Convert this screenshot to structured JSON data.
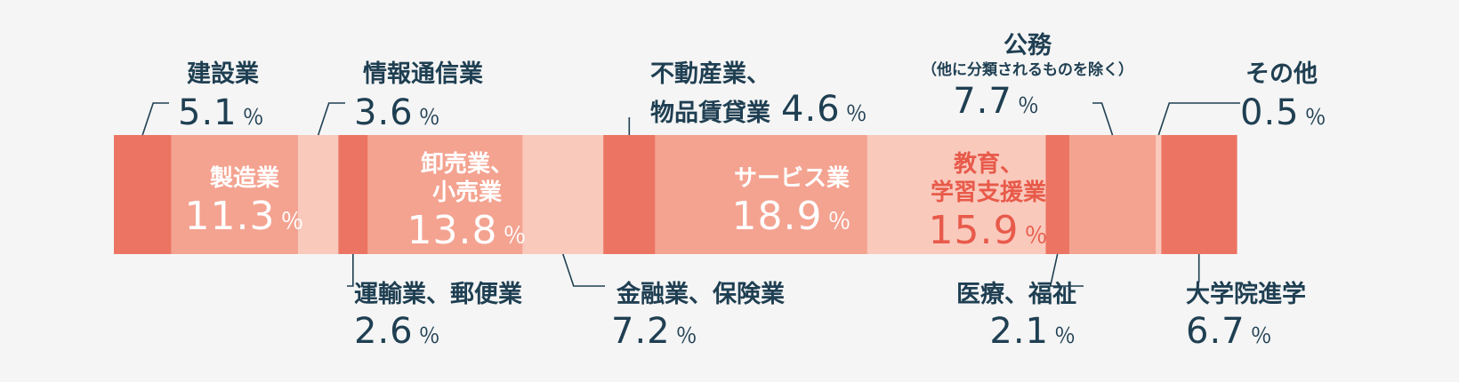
{
  "chart_data": {
    "type": "bar",
    "subtype": "100% stacked horizontal bar",
    "unit": "％",
    "categories": [
      "建設業",
      "製造業",
      "情報通信業",
      "運輸業、郵便業",
      "卸売業、小売業",
      "金融業、保険業",
      "不動産業、物品賃貸業",
      "サービス業",
      "教育、学習支援業",
      "医療、福祉",
      "公務（他に分類されるものを除く）",
      "その他",
      "大学院進学"
    ],
    "series": [
      {
        "values": [
          5.1,
          11.3,
          3.6,
          2.6,
          13.8,
          7.2,
          4.6,
          18.9,
          15.9,
          2.1,
          7.7,
          0.5,
          6.7
        ]
      }
    ],
    "segments": [
      {
        "name": "建設業",
        "value": "5.1",
        "color": "#ec7462"
      },
      {
        "name": "製造業",
        "value": "11.3",
        "color": "#f4a391"
      },
      {
        "name": "情報通信業",
        "value": "3.6",
        "color": "#f9c9bc"
      },
      {
        "name": "運輸業、郵便業",
        "value": "2.6",
        "color": "#ec7462"
      },
      {
        "name_line1": "卸売業、",
        "name_line2": "小売業",
        "value": "13.8",
        "color": "#f4a391"
      },
      {
        "name": "金融業、保険業",
        "value": "7.2",
        "color": "#f9c9bc"
      },
      {
        "name_line1": "不動産業、",
        "name_line2": "物品賃貸業",
        "value": "4.6",
        "color": "#ec7462"
      },
      {
        "name": "サービス業",
        "value": "18.9",
        "color": "#f4a391"
      },
      {
        "name_line1": "教育、",
        "name_line2": "学習支援業",
        "value": "15.9",
        "color": "#f9c9bc"
      },
      {
        "name": "医療、福祉",
        "value": "2.1",
        "color": "#ec7462"
      },
      {
        "name": "公務",
        "name_sub": "（他に分類されるものを除く）",
        "value": "7.7",
        "color": "#f4a391"
      },
      {
        "name": "その他",
        "value": "0.5",
        "color": "#f9c9bc"
      },
      {
        "name": "大学院進学",
        "value": "6.7",
        "color": "#ec7462"
      }
    ],
    "title": "",
    "xlabel": "",
    "ylabel": ""
  }
}
